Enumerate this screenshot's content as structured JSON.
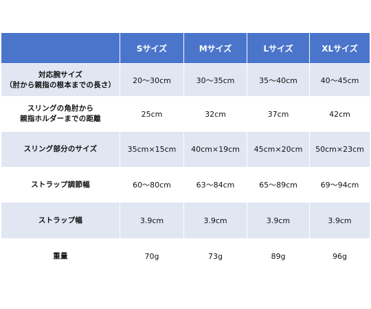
{
  "table": {
    "header": [
      "",
      "Sサイズ",
      "Mサイズ",
      "Lサイズ",
      "XLサイズ"
    ],
    "rows": [
      {
        "label_lines": [
          "対応腕サイズ",
          "（肘から親指の根本までの長さ）"
        ],
        "values": [
          "20～30cm",
          "30～35cm",
          "35～40cm",
          "40～45cm"
        ]
      },
      {
        "label_lines": [
          "スリングの角肘から",
          "親指ホルダーまでの距離"
        ],
        "values": [
          "25cm",
          "32cm",
          "37cm",
          "42cm"
        ]
      },
      {
        "label_lines": [
          "スリング部分のサイズ"
        ],
        "values": [
          "35cm×15cm",
          "40cm×19cm",
          "45cm×20cm",
          "50cm×23cm"
        ]
      },
      {
        "label_lines": [
          "ストラップ調節幅"
        ],
        "values": [
          "60～80cm",
          "63～84cm",
          "65～89cm",
          "69～94cm"
        ]
      },
      {
        "label_lines": [
          "ストラップ幅"
        ],
        "values": [
          "3.9cm",
          "3.9cm",
          "3.9cm",
          "3.9cm"
        ]
      },
      {
        "label_lines": [
          "重量"
        ],
        "values": [
          "70g",
          "73g",
          "89g",
          "96g"
        ]
      }
    ]
  },
  "colors": {
    "header_bg": "#4a75cb",
    "shaded_row_bg": "#e0e6f2",
    "plain_row_bg": "#ffffff"
  }
}
